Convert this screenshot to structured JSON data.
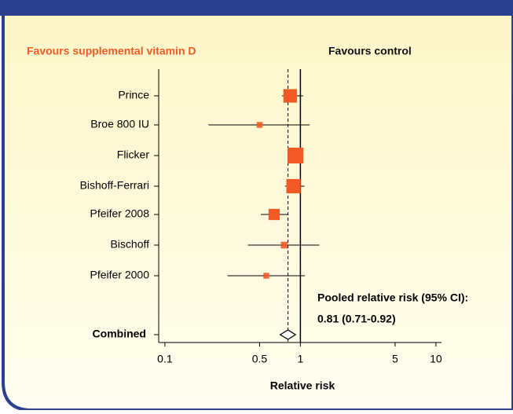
{
  "chart_data": {
    "type": "forest",
    "left_label": "Favours supplemental vitamin D",
    "right_label": "Favours control",
    "categories": [
      "Prince",
      "Broe 800 IU",
      "Flicker",
      "Bishoff-Ferrari",
      "Pfeifer 2008",
      "Bischoff",
      "Pfeifer 2000"
    ],
    "values": [
      0.84,
      0.5,
      0.92,
      0.89,
      0.64,
      0.76,
      0.56
    ],
    "lower": [
      0.73,
      0.21,
      0.82,
      0.77,
      0.51,
      0.41,
      0.29
    ],
    "upper": [
      1.05,
      1.17,
      1.04,
      1.07,
      0.81,
      1.38,
      1.08
    ],
    "weights": [
      16,
      3,
      22,
      18,
      11,
      4,
      3
    ],
    "color": "#f15a24",
    "combined": {
      "label": "Combined",
      "value": 0.81,
      "lower": 0.71,
      "upper": 0.92
    },
    "annotation": [
      "Pooled relative risk (95% CI):",
      "0.81 (0.71-0.92)"
    ],
    "reference_line": 1,
    "xlabel": "Relative risk",
    "xscale": "log",
    "xlim": [
      0.09,
      11
    ],
    "xticks": [
      0.1,
      0.5,
      1,
      5,
      10
    ]
  }
}
